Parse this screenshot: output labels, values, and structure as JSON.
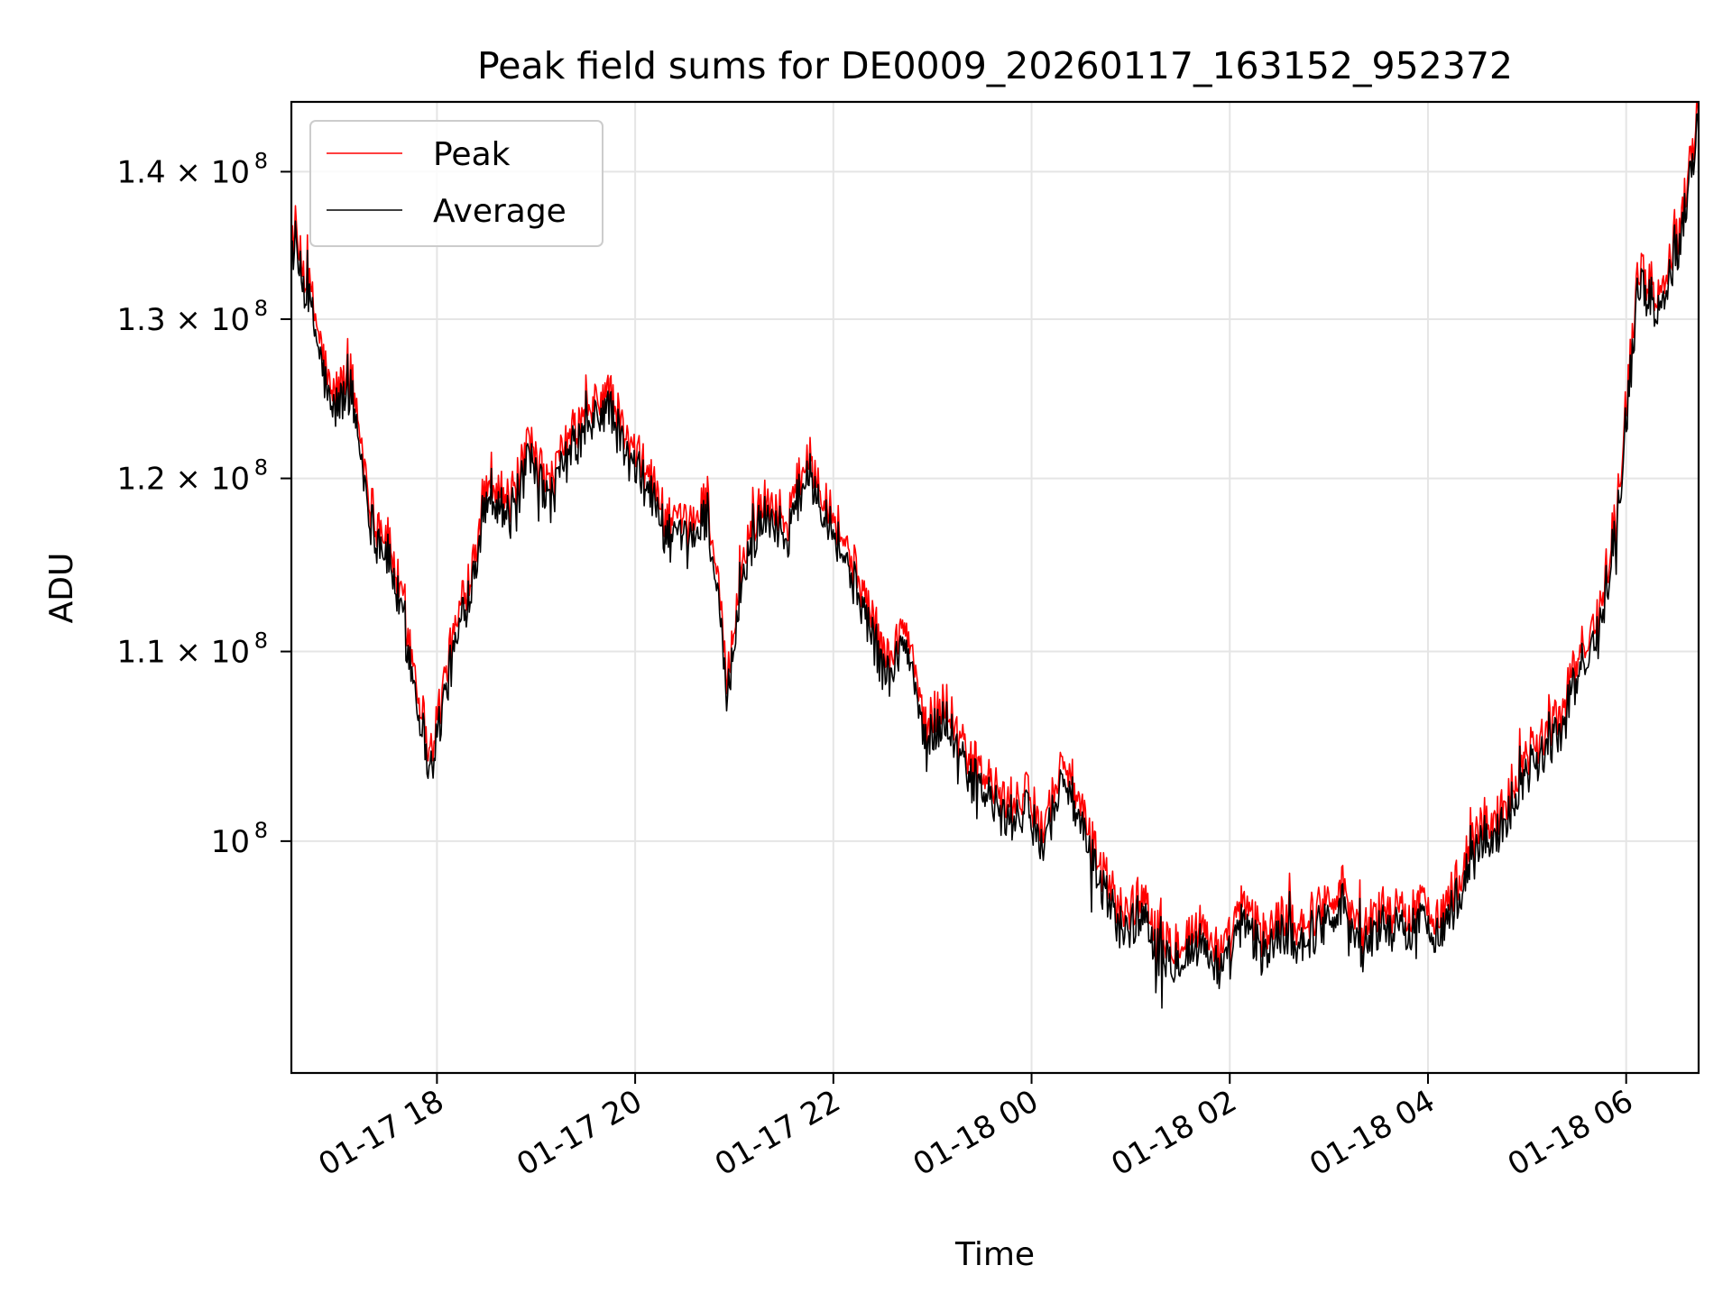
{
  "chart_data": {
    "type": "line",
    "title": "Peak field sums for DE0009_20260117_163152_952372",
    "xlabel": "Time",
    "ylabel": "ADU",
    "y_scale": "log",
    "x_unit": "hours since 01-17 16:31:52",
    "xlim": [
      0.0,
      14.2
    ],
    "ylim": [
      89000000,
      145000000
    ],
    "grid": true,
    "legend_position": "top-left",
    "x_ticks": [
      {
        "value": 1.469,
        "label": "01-17 18"
      },
      {
        "value": 3.469,
        "label": "01-17 20"
      },
      {
        "value": 5.469,
        "label": "01-17 22"
      },
      {
        "value": 7.469,
        "label": "01-18 00"
      },
      {
        "value": 9.469,
        "label": "01-18 02"
      },
      {
        "value": 11.469,
        "label": "01-18 04"
      },
      {
        "value": 13.469,
        "label": "01-18 06"
      }
    ],
    "y_ticks": [
      {
        "value": 100000000,
        "label": "10",
        "exp": "8"
      },
      {
        "value": 110000000,
        "label": "1.1 × 10",
        "exp": "8"
      },
      {
        "value": 120000000,
        "label": "1.2 × 10",
        "exp": "8"
      },
      {
        "value": 130000000,
        "label": "1.3 × 10",
        "exp": "8"
      },
      {
        "value": 140000000,
        "label": "1.4 × 10",
        "exp": "8"
      }
    ],
    "x": [
      0.0,
      0.2,
      0.4,
      0.6,
      0.8,
      1.0,
      1.2,
      1.4,
      1.6,
      1.8,
      2.0,
      2.2,
      2.4,
      2.6,
      2.8,
      3.0,
      3.2,
      3.4,
      3.6,
      3.8,
      4.0,
      4.2,
      4.4,
      4.6,
      4.8,
      5.0,
      5.2,
      5.4,
      5.6,
      5.8,
      6.0,
      6.2,
      6.4,
      6.6,
      6.8,
      7.0,
      7.2,
      7.4,
      7.6,
      7.8,
      8.0,
      8.2,
      8.4,
      8.6,
      8.8,
      9.0,
      9.2,
      9.4,
      9.6,
      9.8,
      10.0,
      10.2,
      10.4,
      10.6,
      10.8,
      11.0,
      11.2,
      11.4,
      11.6,
      11.8,
      12.0,
      12.2,
      12.4,
      12.6,
      12.8,
      13.0,
      13.2,
      13.4,
      13.6,
      13.8,
      14.0,
      14.2
    ],
    "series": [
      {
        "name": "Peak",
        "color": "#ff0000",
        "values": [
          135500000,
          131000000,
          124500000,
          126000000,
          118000000,
          115500000,
          110000000,
          104000000,
          109500000,
          114000000,
          120000000,
          118000000,
          121500000,
          119000000,
          122000000,
          123500000,
          125000000,
          121500000,
          120000000,
          117000000,
          116500000,
          118500000,
          108000000,
          116000000,
          118500000,
          117000000,
          121000000,
          118500000,
          115500000,
          112500000,
          109000000,
          111000000,
          105500000,
          107000000,
          104000000,
          103000000,
          101500000,
          102000000,
          100500000,
          104000000,
          100500000,
          98000000,
          96000000,
          97000000,
          94500000,
          95000000,
          95500000,
          94000000,
          96500000,
          95000000,
          96000000,
          95500000,
          96500000,
          97500000,
          95000000,
          96500000,
          96000000,
          96500000,
          96000000,
          98000000,
          100500000,
          101000000,
          103500000,
          105000000,
          106000000,
          109500000,
          111500000,
          119500000,
          133000000,
          131000000,
          135500000,
          144000000
        ]
      },
      {
        "name": "Average",
        "color": "#000000",
        "values": [
          135000000,
          130500000,
          124000000,
          125500000,
          117500000,
          115000000,
          109500000,
          103500000,
          109000000,
          113500000,
          119500000,
          117500000,
          121000000,
          118500000,
          121500000,
          123000000,
          124500000,
          121000000,
          119500000,
          116500000,
          116000000,
          118000000,
          107500000,
          115500000,
          118000000,
          116500000,
          120500000,
          118000000,
          115000000,
          112000000,
          108500000,
          110500000,
          105000000,
          106500000,
          103500000,
          102500000,
          101000000,
          101500000,
          100000000,
          103500000,
          100000000,
          97500000,
          95500000,
          96500000,
          94000000,
          94500000,
          95000000,
          93500000,
          96000000,
          94500000,
          95500000,
          95000000,
          96000000,
          97000000,
          94500000,
          96000000,
          95500000,
          96000000,
          95500000,
          97500000,
          100000000,
          100500000,
          103000000,
          104500000,
          105500000,
          109000000,
          111000000,
          119000000,
          132500000,
          130500000,
          135000000,
          143500000
        ]
      }
    ]
  }
}
